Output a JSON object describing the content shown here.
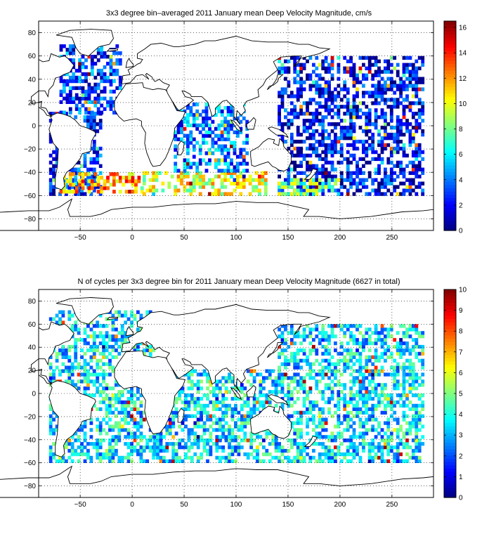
{
  "chart_data": [
    {
      "type": "heatmap",
      "title": "3x3 degree bin–averaged 2011 January mean Deep Velocity Magnitude, cm/s",
      "xlim": [
        -90,
        290
      ],
      "ylim": [
        -90,
        90
      ],
      "xticks": [
        -50,
        0,
        50,
        100,
        150,
        200,
        250
      ],
      "yticks": [
        -80,
        -60,
        -40,
        -20,
        0,
        20,
        40,
        60,
        80
      ],
      "bin_size_deg": 3,
      "grid": true,
      "colorbar": {
        "min": 0,
        "max": 16.5,
        "ticks": [
          0,
          2,
          4,
          6,
          8,
          10,
          12,
          14,
          16
        ],
        "colormap": "jet",
        "placement": "right"
      },
      "regions": [
        {
          "lon": [
            -80,
            -30
          ],
          "lat": [
            -60,
            10
          ],
          "level": 2.5
        },
        {
          "lon": [
            -70,
            -10
          ],
          "lat": [
            10,
            70
          ],
          "level": 3
        },
        {
          "lon": [
            -70,
            10
          ],
          "lat": [
            -58,
            -40
          ],
          "level": 12
        },
        {
          "lon": [
            10,
            130
          ],
          "lat": [
            -60,
            -40
          ],
          "level": 10
        },
        {
          "lon": [
            40,
            110
          ],
          "lat": [
            -40,
            20
          ],
          "level": 4
        },
        {
          "lon": [
            140,
            280
          ],
          "lat": [
            -60,
            60
          ],
          "level": 2
        },
        {
          "lon": [
            140,
            200
          ],
          "lat": [
            -60,
            -45
          ],
          "level": 8
        }
      ]
    },
    {
      "type": "heatmap",
      "title": "N of cycles per 3x3 degree bin for 2011 January mean Deep Velocity Magnitude (6627 in total)",
      "xlim": [
        -90,
        290
      ],
      "ylim": [
        -90,
        90
      ],
      "xticks": [
        -50,
        0,
        50,
        100,
        150,
        200,
        250
      ],
      "yticks": [
        -80,
        -60,
        -40,
        -20,
        0,
        20,
        40,
        60,
        80
      ],
      "bin_size_deg": 3,
      "grid": true,
      "total_cycles": 6627,
      "colorbar": {
        "min": 0,
        "max": 10,
        "ticks": [
          0,
          1,
          2,
          3,
          4,
          5,
          6,
          7,
          8,
          9,
          10
        ],
        "colormap": "jet",
        "placement": "right"
      },
      "regions": [
        {
          "lon": [
            -80,
            20
          ],
          "lat": [
            -60,
            70
          ],
          "level": 3.5
        },
        {
          "lon": [
            20,
            140
          ],
          "lat": [
            -60,
            20
          ],
          "level": 3.5
        },
        {
          "lon": [
            140,
            280
          ],
          "lat": [
            -60,
            60
          ],
          "level": 3.5
        }
      ]
    }
  ]
}
